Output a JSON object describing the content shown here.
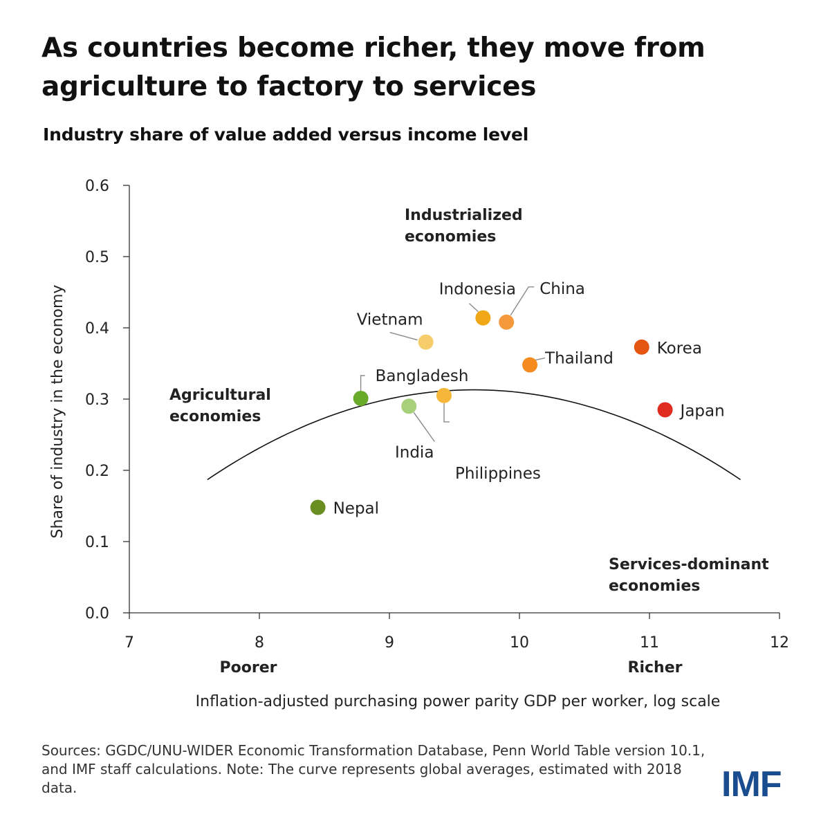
{
  "title": "As countries become richer, they move from agriculture to factory to services",
  "subtitle": "Industry share of value added versus income level",
  "footer": "Sources: GGDC/UNU-WIDER Economic Transformation Database, Penn World Table version 10.1, and IMF staff calculations. Note: The curve represents global averages, estimated with 2018 data.",
  "logo": "IMF",
  "chart_data": {
    "type": "scatter",
    "xlabel": "Inflation-adjusted purchasing power parity GDP per worker, log scale",
    "ylabel": "Share of industry in the economy",
    "xlim": [
      7,
      12
    ],
    "ylim": [
      0,
      0.6
    ],
    "x_ticks": [
      7,
      8,
      9,
      10,
      11,
      12
    ],
    "y_ticks": [
      "0.0",
      "0.1",
      "0.2",
      "0.3",
      "0.4",
      "0.5",
      "0.6"
    ],
    "x_end_labels": {
      "left": "Poorer",
      "right": "Richer"
    },
    "points": [
      {
        "name": "Nepal",
        "x": 8.45,
        "y": 0.148,
        "color": "#6b8e23"
      },
      {
        "name": "Bangladesh",
        "x": 8.78,
        "y": 0.301,
        "color": "#6aaa2a"
      },
      {
        "name": "India",
        "x": 9.15,
        "y": 0.29,
        "color": "#a8d07a"
      },
      {
        "name": "Vietnam",
        "x": 9.28,
        "y": 0.38,
        "color": "#f7cd6b"
      },
      {
        "name": "Philippines",
        "x": 9.42,
        "y": 0.305,
        "color": "#f5b63a"
      },
      {
        "name": "Indonesia",
        "x": 9.72,
        "y": 0.414,
        "color": "#f0a818"
      },
      {
        "name": "China",
        "x": 9.9,
        "y": 0.408,
        "color": "#f59a3c"
      },
      {
        "name": "Thailand",
        "x": 10.08,
        "y": 0.348,
        "color": "#f58a1f"
      },
      {
        "name": "Korea",
        "x": 10.94,
        "y": 0.373,
        "color": "#e35510"
      },
      {
        "name": "Japan",
        "x": 11.12,
        "y": 0.285,
        "color": "#e02b20"
      }
    ],
    "curve": {
      "description_label": "global average fit",
      "x_range": [
        7.6,
        11.7
      ],
      "vertex_x": 9.65,
      "vertex_y": 0.313,
      "a": -0.03
    },
    "annotations": [
      {
        "id": "industrialized",
        "line1": "Industrialized",
        "line2": "economies"
      },
      {
        "id": "agricultural",
        "line1": "Agricultural",
        "line2": "economies"
      },
      {
        "id": "services",
        "line1": "Services-dominant",
        "line2": "economies"
      }
    ]
  }
}
